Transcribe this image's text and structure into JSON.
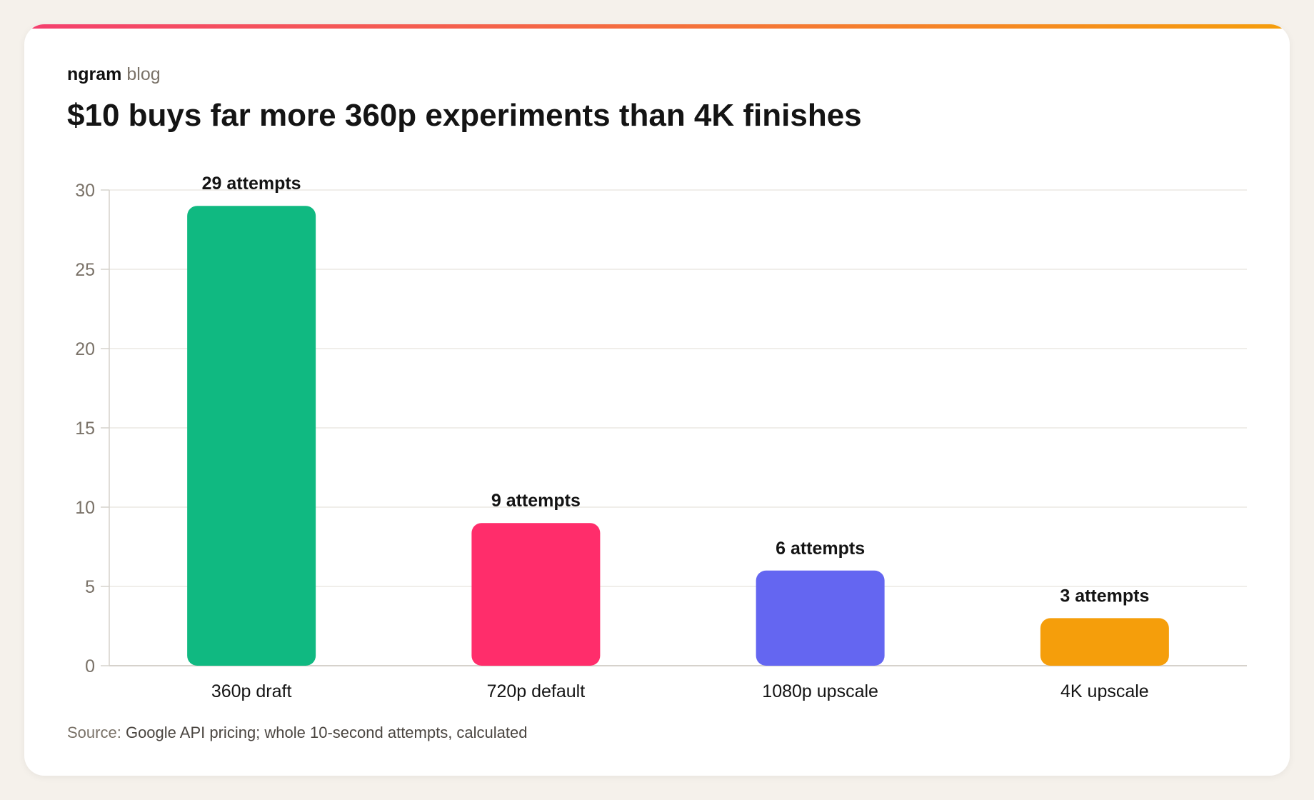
{
  "brand": {
    "name": "ngram",
    "sub": "blog"
  },
  "title": "$10 buys far more 360p experiments than 4K finishes",
  "source": {
    "label": "Source:",
    "text": "Google API pricing; whole 10-second attempts, calculated"
  },
  "colors": {
    "accent_gradient": [
      "#f43f6e",
      "#f59e0b"
    ],
    "grid": "#ece9e4",
    "axis": "#d6d2cc",
    "tick_label": "#7a7268"
  },
  "chart_data": {
    "type": "bar",
    "categories": [
      "360p draft",
      "720p default",
      "1080p upscale",
      "4K upscale"
    ],
    "values": [
      29,
      9,
      6,
      3
    ],
    "data_labels": [
      "29 attempts",
      "9 attempts",
      "6 attempts",
      "3 attempts"
    ],
    "colors": [
      "#10b981",
      "#ff2d6b",
      "#6466f1",
      "#f59e0b"
    ],
    "yticks": [
      0,
      5,
      10,
      15,
      20,
      25,
      30
    ],
    "ylim": [
      0,
      30
    ],
    "grid": true,
    "legend": "none"
  }
}
